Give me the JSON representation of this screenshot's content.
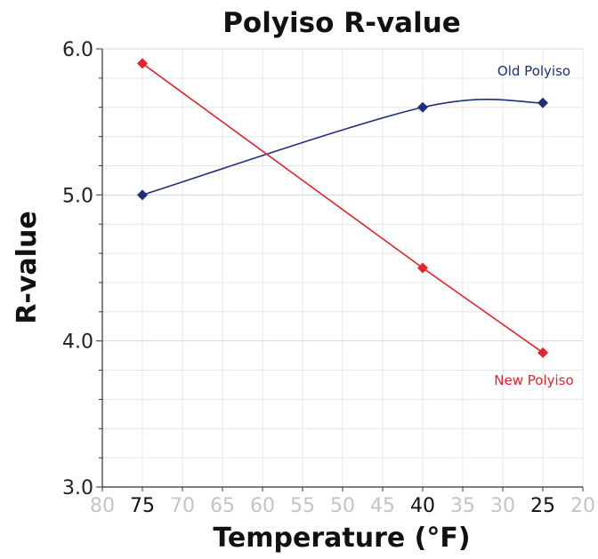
{
  "chart_data": {
    "type": "line",
    "title": "Polyiso R-value",
    "xlabel": "Temperature (°F)",
    "ylabel": "R-value",
    "xlim": [
      80,
      20
    ],
    "ylim": [
      3.0,
      6.0
    ],
    "x_reversed": true,
    "grid": true,
    "y_ticks": [
      "3.0",
      "4.0",
      "5.0",
      "6.0"
    ],
    "x_ticks": [
      {
        "value": 80,
        "label": "80",
        "emphasis": false
      },
      {
        "value": 75,
        "label": "75",
        "emphasis": true
      },
      {
        "value": 70,
        "label": "70",
        "emphasis": false
      },
      {
        "value": 65,
        "label": "65",
        "emphasis": false
      },
      {
        "value": 60,
        "label": "60",
        "emphasis": false
      },
      {
        "value": 55,
        "label": "55",
        "emphasis": false
      },
      {
        "value": 50,
        "label": "50",
        "emphasis": false
      },
      {
        "value": 45,
        "label": "45",
        "emphasis": false
      },
      {
        "value": 40,
        "label": "40",
        "emphasis": true
      },
      {
        "value": 35,
        "label": "35",
        "emphasis": false
      },
      {
        "value": 30,
        "label": "30",
        "emphasis": false
      },
      {
        "value": 25,
        "label": "25",
        "emphasis": true
      },
      {
        "value": 20,
        "label": "20",
        "emphasis": false
      }
    ],
    "series": [
      {
        "name": "Old Polyiso",
        "color": "#1f2f7a",
        "smooth": true,
        "label_anchor": "top-right",
        "points": [
          {
            "x": 75,
            "y": 5.0
          },
          {
            "x": 40,
            "y": 5.6
          },
          {
            "x": 25,
            "y": 5.63
          }
        ]
      },
      {
        "name": "New Polyiso",
        "color": "#e3242b",
        "smooth": false,
        "label_anchor": "bottom-right",
        "points": [
          {
            "x": 75,
            "y": 5.9
          },
          {
            "x": 40,
            "y": 4.5
          },
          {
            "x": 25,
            "y": 3.92
          }
        ]
      }
    ]
  }
}
